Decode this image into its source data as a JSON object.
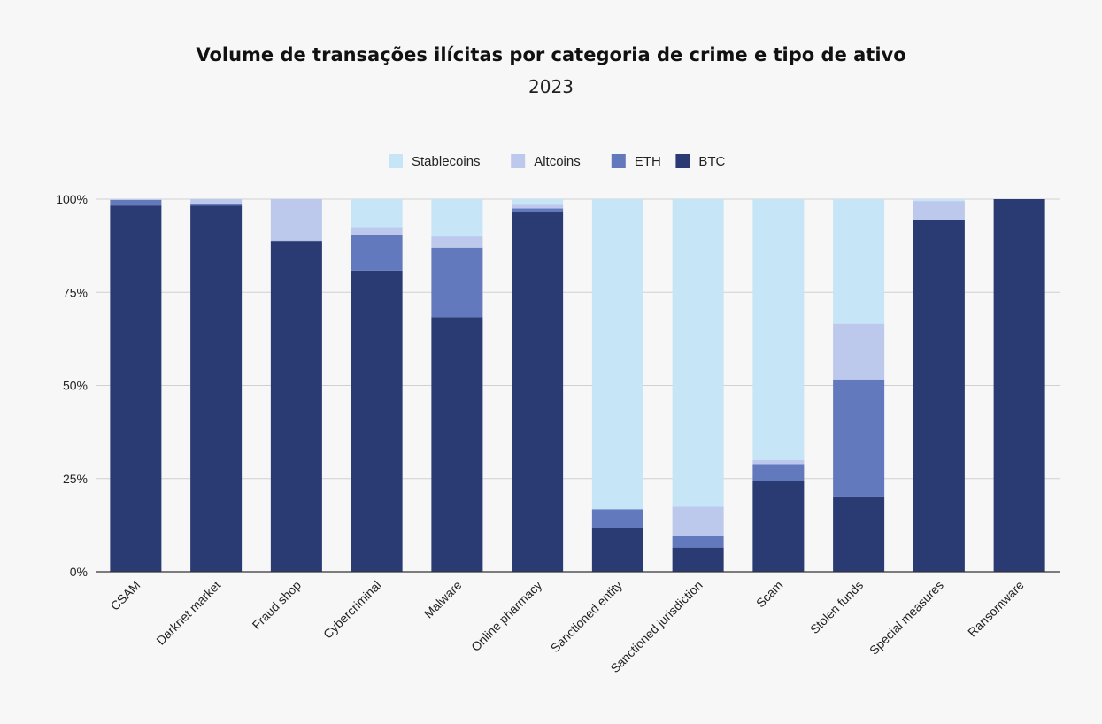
{
  "chart_data": {
    "type": "bar",
    "stacked": true,
    "title": "Volume de transações ilícitas por categoria de crime e tipo de ativo",
    "subtitle": "2023",
    "categories": [
      "CSAM",
      "Darknet market",
      "Fraud shop",
      "Cybercriminal",
      "Malware",
      "Online pharmacy",
      "Sanctioned entity",
      "Sanctioned jurisdiction",
      "Scam",
      "Stolen funds",
      "Special measures",
      "Ransomware"
    ],
    "series": [
      {
        "name": "BTC",
        "color": "#2a3a72",
        "values": [
          98.3,
          98.3,
          88.8,
          80.8,
          68.3,
          96.5,
          11.8,
          6.5,
          24.3,
          20.2,
          94.3,
          100
        ]
      },
      {
        "name": "ETH",
        "color": "#6379bd",
        "values": [
          1.5,
          0.3,
          0.1,
          9.7,
          18.7,
          1.0,
          5.0,
          3.0,
          4.6,
          31.4,
          0.2,
          0
        ]
      },
      {
        "name": "Altcoins",
        "color": "#bcc8ec",
        "values": [
          0.2,
          1.4,
          11.1,
          1.8,
          3.0,
          1.0,
          0,
          8.0,
          1.1,
          15.0,
          5.0,
          0
        ]
      },
      {
        "name": "Stablecoins",
        "color": "#c6e5f6",
        "values": [
          0,
          0,
          0,
          7.7,
          10.0,
          1.5,
          83.2,
          82.5,
          70.0,
          33.4,
          0.5,
          0
        ]
      }
    ],
    "legend_order": [
      "Stablecoins",
      "Altcoins",
      "ETH",
      "BTC"
    ],
    "legend_position": "top-center",
    "ylim": [
      0,
      100
    ],
    "yticks": [
      0,
      25,
      50,
      75,
      100
    ],
    "ytick_labels": [
      "0%",
      "25%",
      "50%",
      "75%",
      "100%"
    ],
    "grid": true,
    "xlabel": "",
    "ylabel": ""
  }
}
